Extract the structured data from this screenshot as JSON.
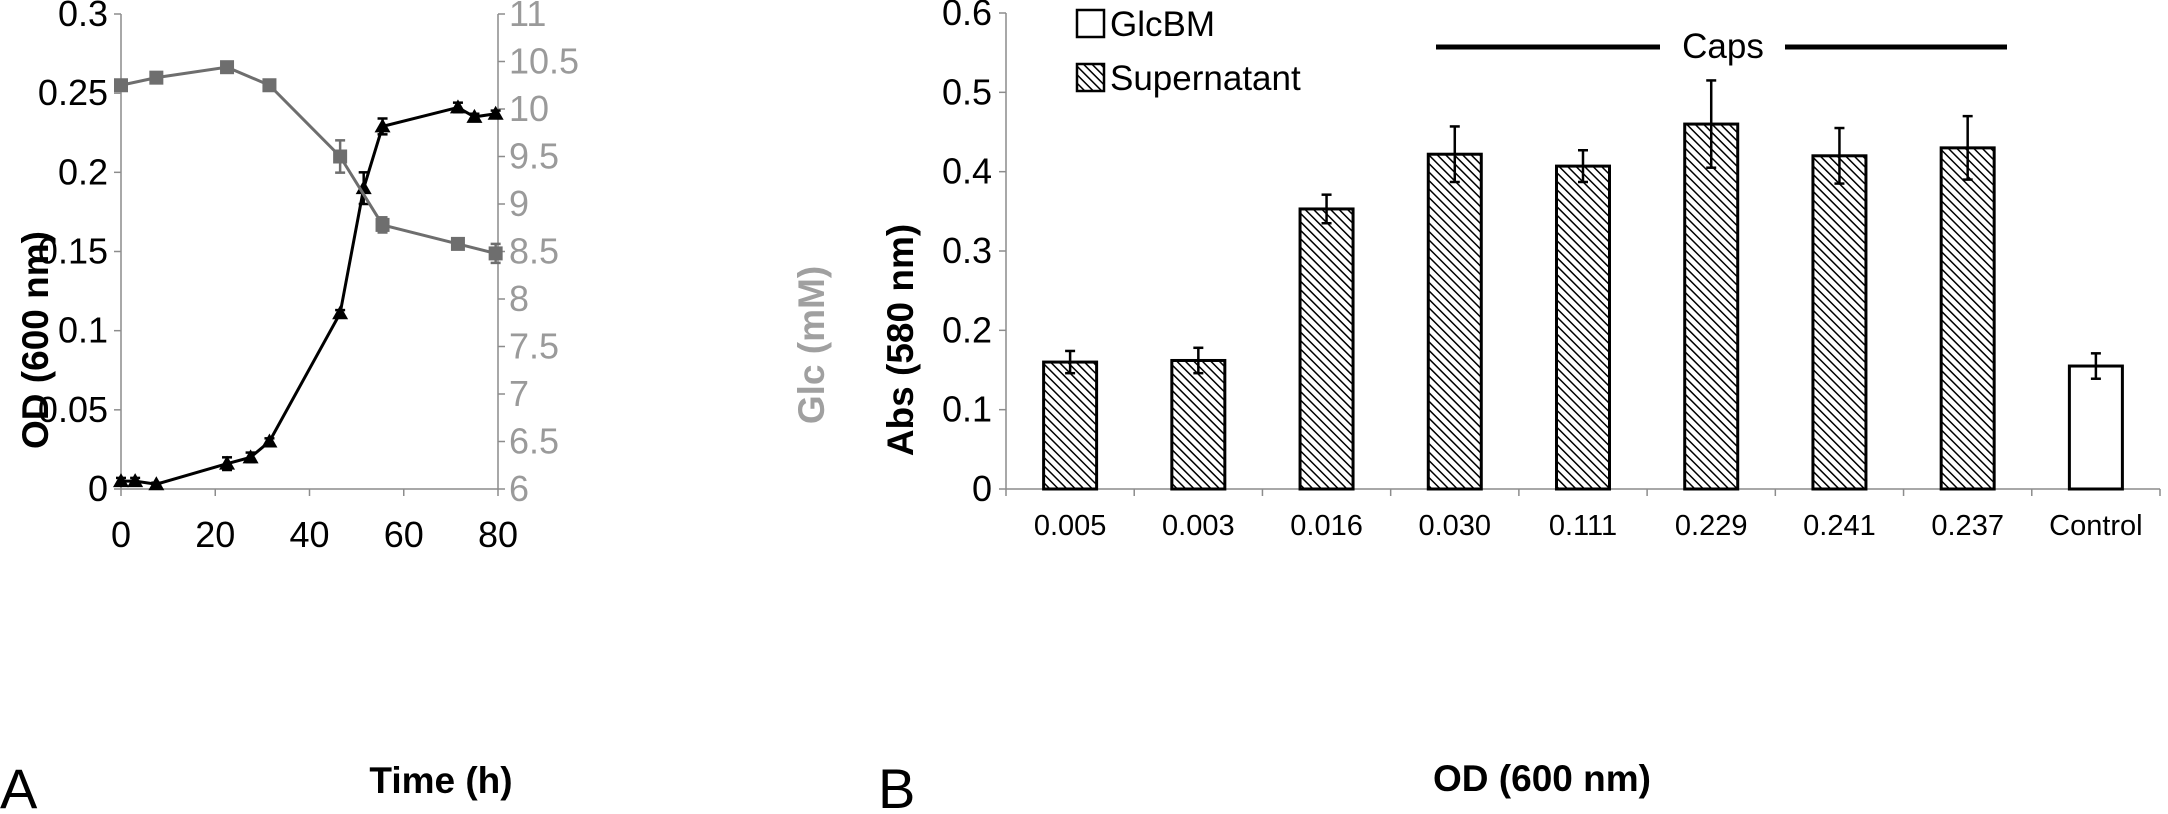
{
  "chart_data": [
    {
      "panel_label": "A",
      "type": "line",
      "xlabel": "Time (h)",
      "ylabel": "OD (600 nm)",
      "ylabel_right": "Glc (mM)",
      "xlim": [
        0,
        80
      ],
      "ylim": [
        0,
        0.3
      ],
      "ylim_right": [
        6,
        11
      ],
      "xticks": [
        0,
        20,
        40,
        60,
        80
      ],
      "yticks": [
        0,
        0.05,
        0.1,
        0.15,
        0.2,
        0.25,
        0.3
      ],
      "yticks_right": [
        6,
        6.5,
        7,
        7.5,
        8,
        8.5,
        9,
        9.5,
        10,
        10.5,
        11
      ],
      "grid": false,
      "series": [
        {
          "axis": "left",
          "marker": "triangle",
          "color": "#000000",
          "x": [
            0,
            3,
            7.5,
            22.5,
            27.5,
            31.5,
            46.5,
            51.5,
            55.5,
            71.5,
            75,
            79.5
          ],
          "y": [
            0.005,
            0.005,
            0.003,
            0.016,
            0.02,
            0.03,
            0.111,
            0.19,
            0.229,
            0.241,
            0.235,
            0.237
          ],
          "err": [
            0.002,
            0.002,
            0.001,
            0.004,
            0.003,
            0.002,
            0.002,
            0.01,
            0.005,
            0.003,
            0.002,
            0.002
          ]
        },
        {
          "axis": "right",
          "marker": "square",
          "color": "#6e6e6e",
          "x": [
            0,
            7.5,
            22.5,
            31.5,
            46.5,
            55.5,
            71.5,
            79.5
          ],
          "y": [
            10.25,
            10.33,
            10.44,
            10.25,
            9.5,
            8.78,
            8.58,
            8.48
          ],
          "err": [
            0.03,
            0.03,
            0.04,
            0.03,
            0.17,
            0.08,
            0.03,
            0.1
          ]
        }
      ]
    },
    {
      "panel_label": "B",
      "type": "bar",
      "xlabel": "OD (600 nm)",
      "ylabel": "Abs (580 nm)",
      "ylim": [
        0,
        0.6
      ],
      "yticks": [
        0,
        0.1,
        0.2,
        0.3,
        0.4,
        0.5,
        0.6
      ],
      "grid": false,
      "categories": [
        "0.005",
        "0.003",
        "0.016",
        "0.030",
        "0.111",
        "0.229",
        "0.241",
        "0.237",
        "Control"
      ],
      "values": [
        0.16,
        0.162,
        0.353,
        0.422,
        0.407,
        0.46,
        0.42,
        0.43,
        0.155
      ],
      "errors": [
        0.014,
        0.016,
        0.018,
        0.035,
        0.02,
        0.055,
        0.035,
        0.04,
        0.016
      ],
      "bar_fill": [
        "Supernatant",
        "Supernatant",
        "Supernatant",
        "Supernatant",
        "Supernatant",
        "Supernatant",
        "Supernatant",
        "Supernatant",
        "GlcBM"
      ],
      "legend": {
        "position": "top-left",
        "entries": [
          {
            "name": "GlcBM",
            "fill": "white"
          },
          {
            "name": "Supernatant",
            "fill": "hatched"
          }
        ]
      },
      "annotation": {
        "text": "Caps",
        "spans_categories": [
          "0.030",
          "0.237"
        ]
      }
    }
  ]
}
